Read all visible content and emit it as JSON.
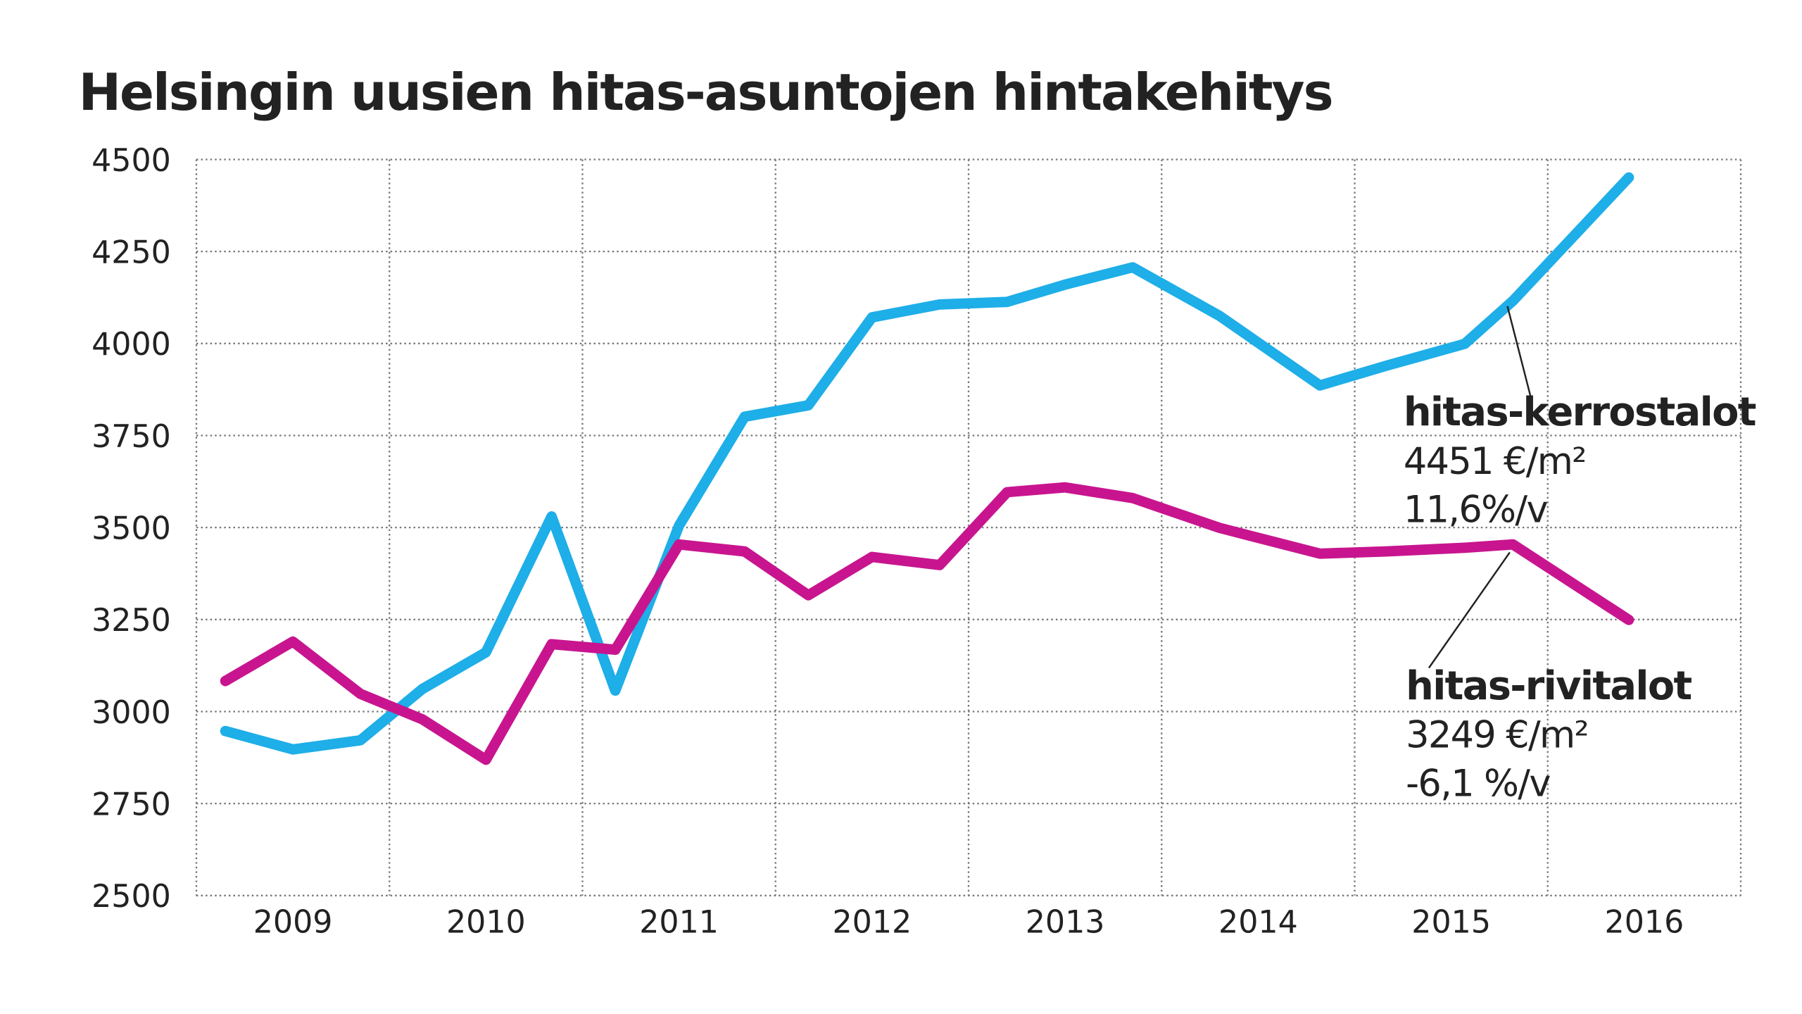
{
  "chart_data": {
    "type": "line",
    "title": "Helsingin uusien hitas-asuntojen hintakehitys",
    "x": [
      2009.15,
      2009.5,
      2009.85,
      2010.17,
      2010.5,
      2010.84,
      2011.17,
      2011.5,
      2011.84,
      2012.17,
      2012.5,
      2012.85,
      2013.2,
      2013.5,
      2013.85,
      2014.3,
      2014.82,
      2015.16,
      2015.57,
      2015.82,
      2016.42
    ],
    "series": [
      {
        "name": "hitas-kerrostalot",
        "color": "#1eaee8",
        "values": [
          2947,
          2897,
          2922,
          3061,
          3161,
          3530,
          3057,
          3505,
          3801,
          3832,
          4071,
          4106,
          4113,
          4160,
          4207,
          4075,
          3886,
          3939,
          3999,
          4116,
          4451
        ],
        "labels": [
          "4451 €/m²",
          "11,6%/v"
        ]
      },
      {
        "name": "hitas-rivitalot",
        "color": "#c8158f",
        "values": [
          3083,
          3190,
          3048,
          2979,
          2869,
          3183,
          3168,
          3454,
          3435,
          3316,
          3420,
          3398,
          3596,
          3609,
          3580,
          3499,
          3429,
          3435,
          3445,
          3454,
          3249
        ],
        "labels": [
          "3249 €/m²",
          "-6,1 %/v"
        ]
      }
    ],
    "xlim": [
      2009,
      2017
    ],
    "xticks": [
      {
        "value": 2009,
        "label": "2009"
      },
      {
        "value": 2010,
        "label": "2010"
      },
      {
        "value": 2011,
        "label": "2011"
      },
      {
        "value": 2012,
        "label": "2012"
      },
      {
        "value": 2013,
        "label": "2013"
      },
      {
        "value": 2014,
        "label": "2014"
      },
      {
        "value": 2015,
        "label": "2015"
      },
      {
        "value": 2016,
        "label": "2016"
      }
    ],
    "xtick_labels": "between",
    "ylim": [
      2500,
      4500
    ],
    "yticks": [
      2500,
      2750,
      3000,
      3250,
      3500,
      3750,
      4000,
      4250,
      4500
    ],
    "grid": true
  }
}
